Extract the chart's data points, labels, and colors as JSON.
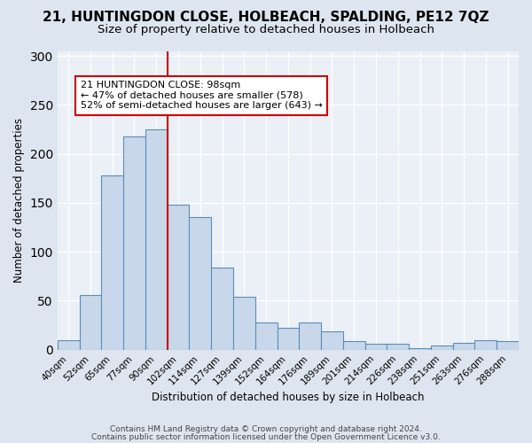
{
  "title": "21, HUNTINGDON CLOSE, HOLBEACH, SPALDING, PE12 7QZ",
  "subtitle": "Size of property relative to detached houses in Holbeach",
  "xlabel": "Distribution of detached houses by size in Holbeach",
  "ylabel": "Number of detached properties",
  "categories": [
    "40sqm",
    "52sqm",
    "65sqm",
    "77sqm",
    "90sqm",
    "102sqm",
    "114sqm",
    "127sqm",
    "139sqm",
    "152sqm",
    "164sqm",
    "176sqm",
    "189sqm",
    "201sqm",
    "214sqm",
    "226sqm",
    "238sqm",
    "251sqm",
    "263sqm",
    "276sqm",
    "288sqm"
  ],
  "values": [
    10,
    56,
    178,
    218,
    225,
    148,
    135,
    84,
    54,
    28,
    22,
    28,
    19,
    9,
    6,
    6,
    2,
    4,
    7,
    10,
    9
  ],
  "bar_color": "#c8d8ea",
  "bar_edge_color": "#5b8db8",
  "vline_x_index": 5,
  "vline_color": "#cc0000",
  "annotation_text": "21 HUNTINGDON CLOSE: 98sqm\n← 47% of detached houses are smaller (578)\n52% of semi-detached houses are larger (643) →",
  "annotation_box_color": "#ffffff",
  "annotation_box_edge": "#cc0000",
  "ylim": [
    0,
    305
  ],
  "yticks": [
    0,
    50,
    100,
    150,
    200,
    250,
    300
  ],
  "footer1": "Contains HM Land Registry data © Crown copyright and database right 2024.",
  "footer2": "Contains public sector information licensed under the Open Government Licence v3.0.",
  "bg_color": "#dde6f0",
  "plot_bg_color": "#eaf0f6",
  "title_fontsize": 11,
  "subtitle_fontsize": 9.5
}
